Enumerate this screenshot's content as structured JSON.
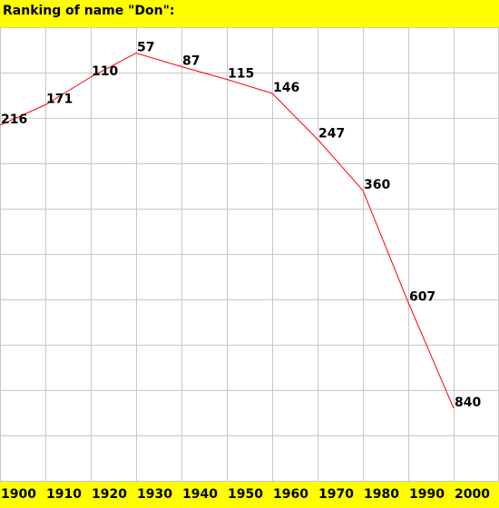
{
  "chart_data": {
    "type": "line",
    "title": "Ranking of name \"Don\":",
    "categories": [
      "1900",
      "1910",
      "1920",
      "1930",
      "1940",
      "1950",
      "1960",
      "1970",
      "1980",
      "1990",
      "2000"
    ],
    "values": [
      216,
      171,
      110,
      57,
      87,
      115,
      146,
      247,
      360,
      607,
      840
    ],
    "color": "#ff0000",
    "ylim": [
      0,
      1000
    ],
    "yinverted": true,
    "yticks": [
      0,
      100,
      200,
      300,
      400,
      500,
      600,
      700,
      800,
      900,
      1000
    ],
    "grid": true
  }
}
